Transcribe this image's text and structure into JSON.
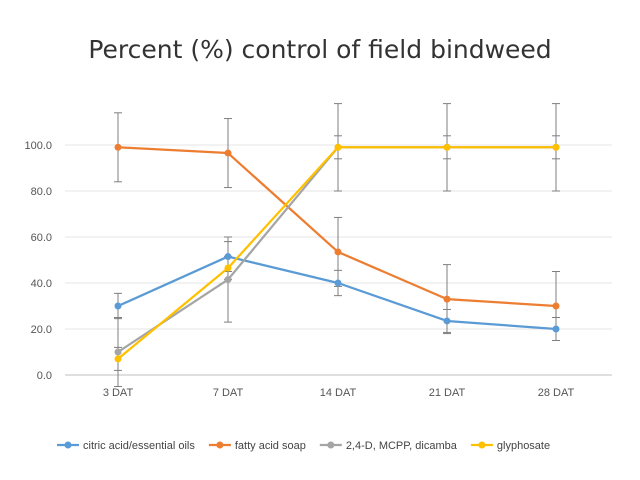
{
  "chart_data": {
    "type": "line",
    "title": "Percent (%) control of field bindweed",
    "xlabel": "",
    "ylabel": "",
    "categories": [
      "3 DAT",
      "7 DAT",
      "14 DAT",
      "21 DAT",
      "28 DAT"
    ],
    "ylim": [
      0,
      100
    ],
    "yticks": [
      "0.0",
      "20.0",
      "40.0",
      "60.0",
      "80.0",
      "100.0"
    ],
    "grid": true,
    "legend_position": "bottom",
    "series": [
      {
        "name": "citric acid/essential oils",
        "color": "#5b9bd5",
        "values": [
          30,
          51.5,
          40,
          23.5,
          20
        ],
        "error": [
          5.5,
          6.5,
          5.5,
          5,
          5
        ]
      },
      {
        "name": "fatty acid soap",
        "color": "#ed7d31",
        "values": [
          99,
          96.5,
          53.5,
          33,
          30
        ],
        "error": [
          15,
          15,
          15,
          15,
          15
        ]
      },
      {
        "name": "2,4-D, MCPP, dicamba",
        "color": "#a5a5a5",
        "values": [
          10,
          41.5,
          99,
          99,
          99
        ],
        "error": [
          15,
          18.5,
          19,
          19,
          19
        ]
      },
      {
        "name": "glyphosate",
        "color": "#ffc000",
        "values": [
          7,
          46.5,
          99,
          99,
          99
        ],
        "error": [
          5,
          5,
          5,
          5,
          5
        ]
      }
    ]
  }
}
